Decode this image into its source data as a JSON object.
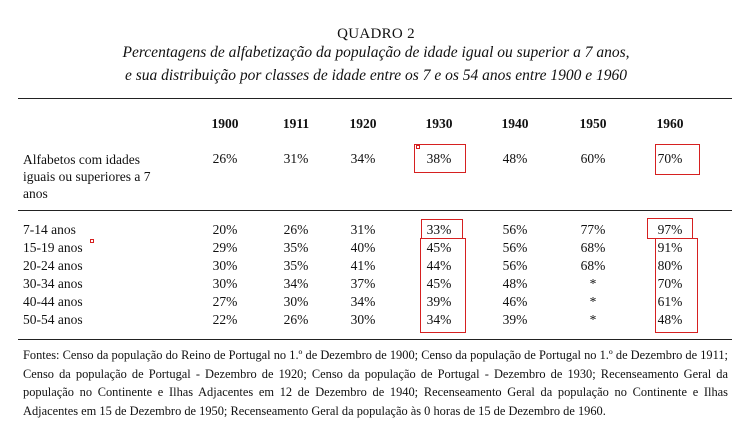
{
  "title": "QUADRO 2",
  "subtitle_line1": "Percentagens de alfabetização da população de idade igual ou superior a 7 anos,",
  "subtitle_line2": "e sua distribuição por classes de idade entre os 7 e os 54 anos entre 1900 e 1960",
  "years": [
    "1900",
    "1911",
    "1920",
    "1930",
    "1940",
    "1950",
    "1960"
  ],
  "alfabetos": {
    "label": "Alfabetos com idades iguais ou superiores a 7 anos",
    "values": [
      "26%",
      "31%",
      "34%",
      "38%",
      "48%",
      "60%",
      "70%"
    ]
  },
  "age_rows": [
    {
      "label": "7-14 anos",
      "values": [
        "20%",
        "26%",
        "31%",
        "33%",
        "56%",
        "77%",
        "97%"
      ]
    },
    {
      "label": "15-19 anos",
      "values": [
        "29%",
        "35%",
        "40%",
        "45%",
        "56%",
        "68%",
        "91%"
      ]
    },
    {
      "label": "20-24 anos",
      "values": [
        "30%",
        "35%",
        "41%",
        "44%",
        "56%",
        "68%",
        "80%"
      ]
    },
    {
      "label": "30-34 anos",
      "values": [
        "30%",
        "34%",
        "37%",
        "45%",
        "48%",
        "*",
        "70%"
      ]
    },
    {
      "label": "40-44 anos",
      "values": [
        "27%",
        "30%",
        "34%",
        "39%",
        "46%",
        "*",
        "61%"
      ]
    },
    {
      "label": "50-54 anos",
      "values": [
        "22%",
        "26%",
        "30%",
        "34%",
        "39%",
        "*",
        "48%"
      ]
    }
  ],
  "sources": "Fontes: Censo da população do Reino de Portugal no 1.º de Dezembro de 1900; Censo da população de Portugal no 1.º de Dezembro de 1911; Censo da população de Portugal - Dezembro de 1920; Censo da população de Portugal - Dezembro de 1930; Recenseamento Geral da população no Continente e Ilhas Adjacentes em 12 de Dezembro de 1940; Recenseamento Geral da população no Continente e Ilhas Adjacentes em 15 de Dezembro de 1950; Recenseamento Geral da população às 0 horas de 15 de Dezembro de 1960.",
  "highlight_color": "#d62020"
}
